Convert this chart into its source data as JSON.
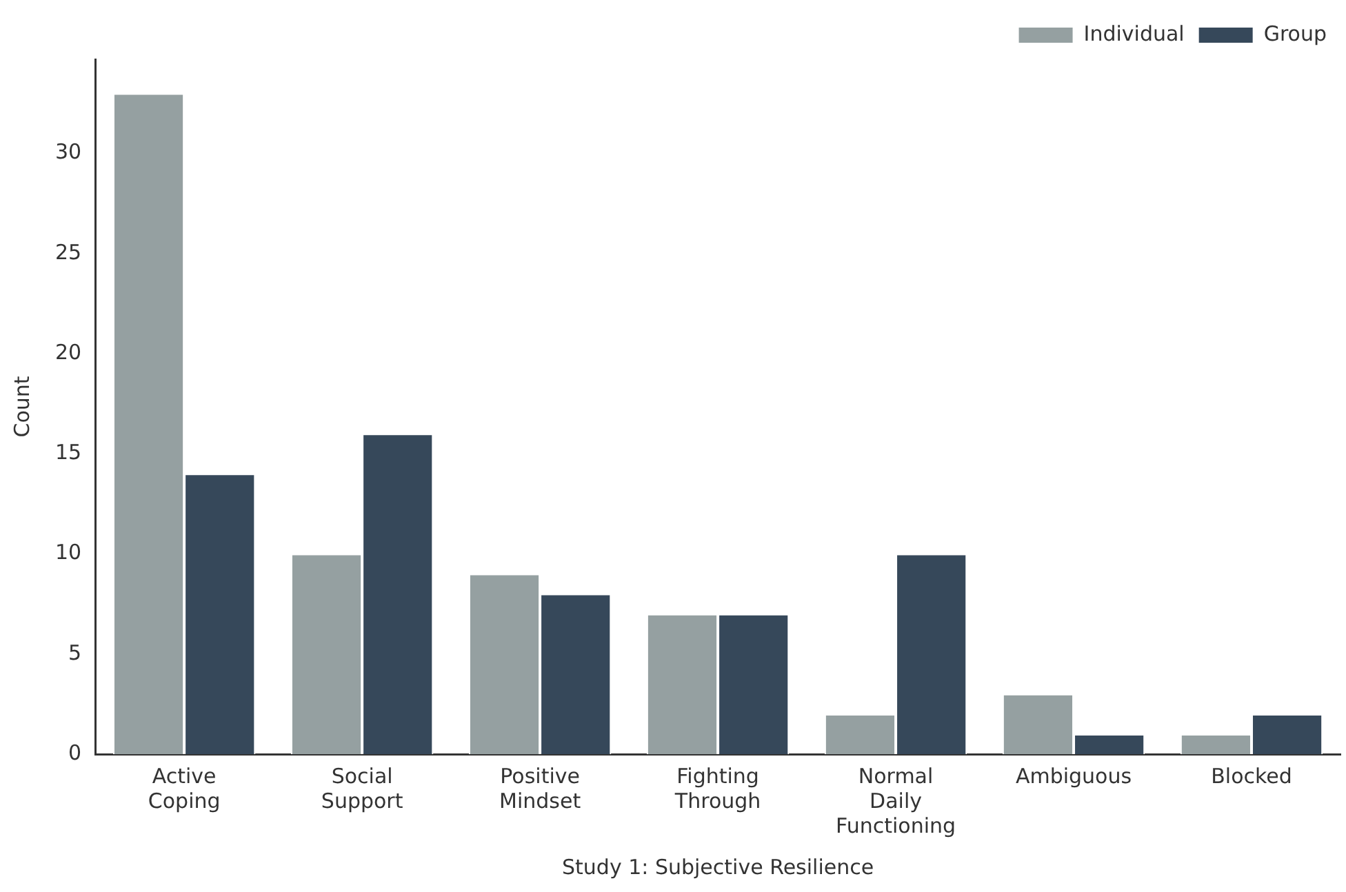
{
  "chart_data": {
    "type": "bar",
    "xlabel": "Study 1: Subjective Resilience",
    "ylabel": "Count",
    "categories": [
      "Active Coping",
      "Social Support",
      "Positive Mindset",
      "Fighting Through",
      "Normal Daily Functioning",
      "Ambiguous",
      "Blocked"
    ],
    "series": [
      {
        "name": "Individual",
        "color": "#95a0a1",
        "values": [
          33,
          10,
          9,
          7,
          2,
          3,
          1
        ]
      },
      {
        "name": "Group",
        "color": "#36485a",
        "values": [
          14,
          16,
          8,
          7,
          10,
          1,
          2
        ]
      }
    ],
    "ylim": [
      0,
      34.7
    ],
    "yticks": [
      0,
      5,
      10,
      15,
      20,
      25,
      30
    ],
    "grid": false,
    "legend": "top right"
  }
}
